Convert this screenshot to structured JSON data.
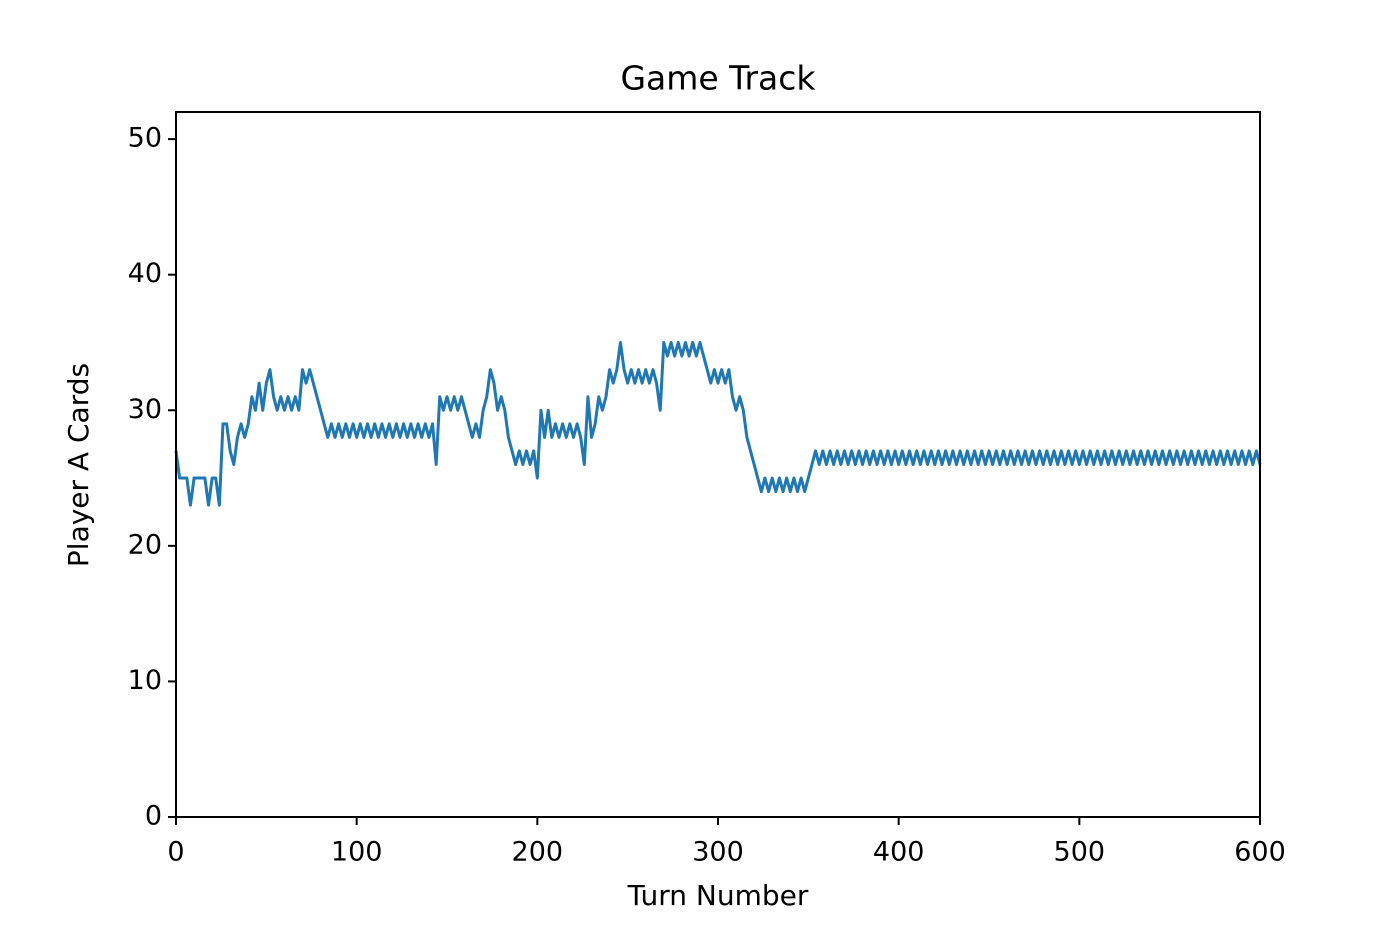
{
  "chart_data": {
    "type": "line",
    "title": "Game Track",
    "x_label": "Turn Number",
    "y_label": "Player A Cards",
    "xlim": [
      0,
      600
    ],
    "ylim": [
      0,
      52
    ],
    "xticks": [
      0,
      100,
      200,
      300,
      400,
      500,
      600
    ],
    "yticks": [
      0,
      10,
      20,
      30,
      40,
      50
    ],
    "x": [
      0,
      2,
      4,
      6,
      8,
      10,
      12,
      14,
      16,
      18,
      20,
      22,
      24,
      26,
      28,
      30,
      32,
      34,
      36,
      38,
      40,
      42,
      44,
      46,
      48,
      50,
      52,
      54,
      56,
      58,
      60,
      62,
      64,
      66,
      68,
      70,
      72,
      74,
      76,
      78,
      80,
      82,
      84,
      86,
      88,
      90,
      92,
      94,
      96,
      98,
      100,
      102,
      104,
      106,
      108,
      110,
      112,
      114,
      116,
      118,
      120,
      122,
      124,
      126,
      128,
      130,
      132,
      134,
      136,
      138,
      140,
      142,
      144,
      146,
      148,
      150,
      152,
      154,
      156,
      158,
      160,
      162,
      164,
      166,
      168,
      170,
      172,
      174,
      176,
      178,
      180,
      182,
      184,
      186,
      188,
      190,
      192,
      194,
      196,
      198,
      200,
      202,
      204,
      206,
      208,
      210,
      212,
      214,
      216,
      218,
      220,
      222,
      224,
      226,
      228,
      230,
      232,
      234,
      236,
      238,
      240,
      242,
      244,
      246,
      248,
      250,
      252,
      254,
      256,
      258,
      260,
      262,
      264,
      266,
      268,
      270,
      272,
      274,
      276,
      278,
      280,
      282,
      284,
      286,
      288,
      290,
      292,
      294,
      296,
      298,
      300,
      302,
      304,
      306,
      308,
      310,
      312,
      314,
      316,
      318,
      320,
      322,
      324,
      326,
      328,
      330,
      332,
      334,
      336,
      338,
      340,
      342,
      344,
      346,
      348,
      350,
      352,
      354,
      356,
      358,
      360,
      362,
      364,
      366,
      368,
      370,
      372,
      374,
      376,
      378,
      380,
      382,
      384,
      386,
      388,
      390,
      392,
      394,
      396,
      398,
      400,
      402,
      404,
      406,
      408,
      410,
      412,
      414,
      416,
      418,
      420,
      422,
      424,
      426,
      428,
      430,
      432,
      434,
      436,
      438,
      440,
      442,
      444,
      446,
      448,
      450,
      452,
      454,
      456,
      458,
      460,
      462,
      464,
      466,
      468,
      470,
      472,
      474,
      476,
      478,
      480,
      482,
      484,
      486,
      488,
      490,
      492,
      494,
      496,
      498,
      500,
      502,
      504,
      506,
      508,
      510,
      512,
      514,
      516,
      518,
      520,
      522,
      524,
      526,
      528,
      530,
      532,
      534,
      536,
      538,
      540,
      542,
      544,
      546,
      548,
      550,
      552,
      554,
      556,
      558,
      560,
      562,
      564,
      566,
      568,
      570,
      572,
      574,
      576,
      578,
      580,
      582,
      584,
      586,
      588,
      590,
      592,
      594,
      596,
      598,
      600
    ],
    "series": [
      {
        "name": "Player A",
        "color": "#1f77b4",
        "values": [
          27,
          25,
          25,
          25,
          23,
          25,
          25,
          25,
          25,
          23,
          25,
          25,
          23,
          29,
          29,
          27,
          26,
          28,
          29,
          28,
          29,
          31,
          30,
          32,
          30,
          32,
          33,
          31,
          30,
          31,
          30,
          31,
          30,
          31,
          30,
          33,
          32,
          33,
          32,
          31,
          30,
          29,
          28,
          29,
          28,
          29,
          28,
          29,
          28,
          29,
          28,
          29,
          28,
          29,
          28,
          29,
          28,
          29,
          28,
          29,
          28,
          29,
          28,
          29,
          28,
          29,
          28,
          29,
          28,
          29,
          28,
          29,
          26,
          31,
          30,
          31,
          30,
          31,
          30,
          31,
          30,
          29,
          28,
          29,
          28,
          30,
          31,
          33,
          32,
          30,
          31,
          30,
          28,
          27,
          26,
          27,
          26,
          27,
          26,
          27,
          25,
          30,
          28,
          30,
          28,
          29,
          28,
          29,
          28,
          29,
          28,
          29,
          28,
          26,
          31,
          28,
          29,
          31,
          30,
          31,
          33,
          32,
          33,
          35,
          33,
          32,
          33,
          32,
          33,
          32,
          33,
          32,
          33,
          32,
          30,
          35,
          34,
          35,
          34,
          35,
          34,
          35,
          34,
          35,
          34,
          35,
          34,
          33,
          32,
          33,
          32,
          33,
          32,
          33,
          31,
          30,
          31,
          30,
          28,
          27,
          26,
          25,
          24,
          25,
          24,
          25,
          24,
          25,
          24,
          25,
          24,
          25,
          24,
          25,
          24,
          25,
          26,
          27,
          26,
          27,
          26,
          27,
          26,
          27,
          26,
          27,
          26,
          27,
          26,
          27,
          26,
          27,
          26,
          27,
          26,
          27,
          26,
          27,
          26,
          27,
          26,
          27,
          26,
          27,
          26,
          27,
          26,
          27,
          26,
          27,
          26,
          27,
          26,
          27,
          26,
          27,
          26,
          27,
          26,
          27,
          26,
          27,
          26,
          27,
          26,
          27,
          26,
          27,
          26,
          27,
          26,
          27,
          26,
          27,
          26,
          27,
          26,
          27,
          26,
          27,
          26,
          27,
          26,
          27,
          26,
          27,
          26,
          27,
          26,
          27,
          26,
          27,
          26,
          27,
          26,
          27,
          26,
          27,
          26,
          27,
          26,
          27,
          26,
          27,
          26,
          27,
          26,
          27,
          26,
          27,
          26,
          27,
          26,
          27,
          26,
          27,
          26,
          27,
          26,
          27,
          26,
          27,
          26,
          27,
          26,
          27,
          26,
          27,
          26,
          27,
          26,
          27,
          26,
          27,
          26,
          27,
          26,
          27,
          26,
          27,
          26
        ]
      }
    ]
  }
}
